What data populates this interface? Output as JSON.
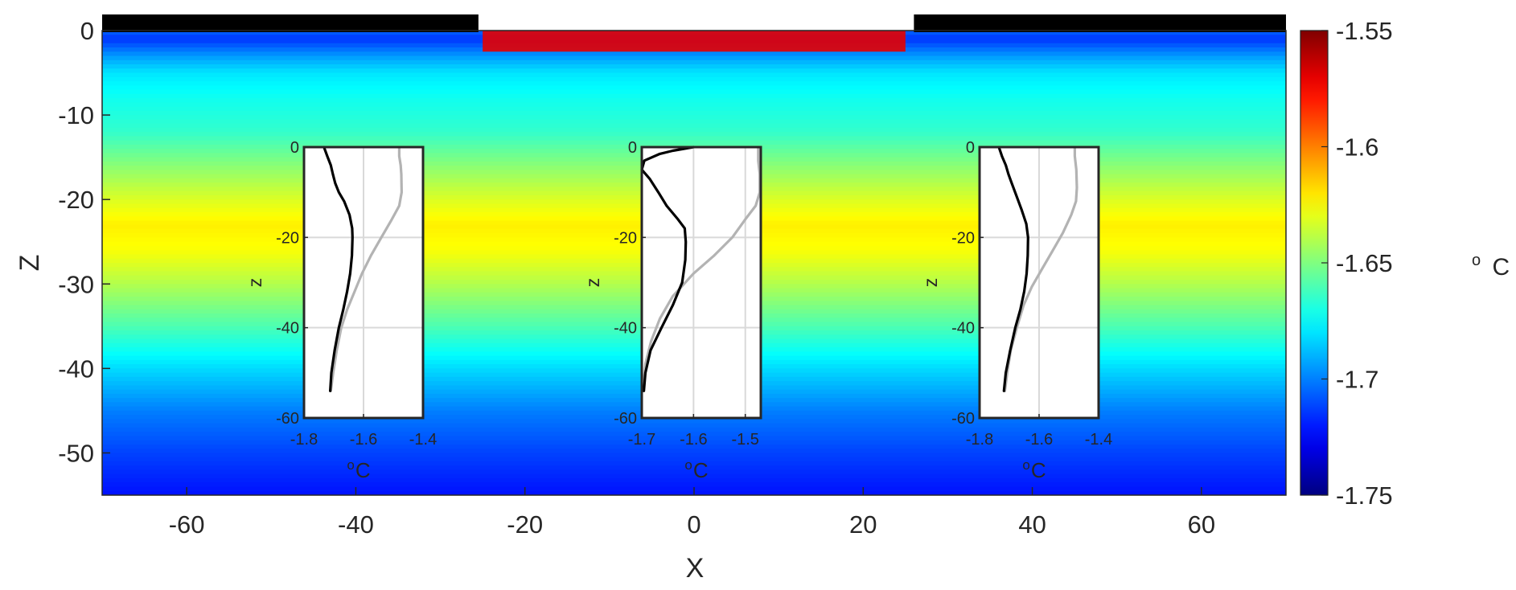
{
  "chart_data": [
    {
      "type": "heatmap",
      "xlabel": "X",
      "ylabel": "Z",
      "xlim": [
        -70,
        70
      ],
      "ylim": [
        -55,
        0
      ],
      "xticks": [
        -60,
        -40,
        -20,
        0,
        20,
        40,
        60
      ],
      "yticks": [
        0,
        -10,
        -20,
        -30,
        -40,
        -50
      ],
      "colormap": "jet",
      "colorbar": {
        "label_base": "o",
        "label_unit": "C",
        "range": [
          -1.75,
          -1.55
        ],
        "ticks": [
          "-1.55",
          "-1.6",
          "-1.65",
          "-1.7",
          "-1.75"
        ]
      },
      "ice_shelves": [
        {
          "x_from": -70,
          "x_to": -25.5,
          "z": 0
        },
        {
          "x_from": 26,
          "x_to": 70,
          "z": 0
        }
      ],
      "temperature_profile": {
        "depth": [
          0,
          -1,
          -3,
          -5,
          -8,
          -12,
          -16,
          -20,
          -23,
          -26,
          -30,
          -35,
          -40,
          -45,
          -50,
          -55
        ],
        "temp": [
          -1.705,
          -1.715,
          -1.695,
          -1.68,
          -1.672,
          -1.665,
          -1.648,
          -1.632,
          -1.622,
          -1.626,
          -1.64,
          -1.66,
          -1.682,
          -1.7,
          -1.712,
          -1.722
        ]
      },
      "surface_warm_layer": {
        "x_from": -25,
        "x_to": 25,
        "temp": -1.57,
        "depth": 2.5
      }
    },
    {
      "type": "line",
      "position": "left inset",
      "xlabel_base": "o",
      "xlabel_unit": "C",
      "ylabel": "z",
      "xlim": [
        -1.8,
        -1.4
      ],
      "ylim": [
        -60,
        0
      ],
      "xticks": [
        -1.8,
        -1.6,
        -1.4
      ],
      "xtick_labels": [
        "-1.8",
        "-1.6",
        "-1.4"
      ],
      "yticks": [
        0,
        -20,
        -40,
        -60
      ],
      "ytick_labels": [
        "0",
        "-20",
        "-40",
        "-60"
      ],
      "grid": true,
      "series": [
        {
          "color": "#000000",
          "x": [
            -1.733,
            -1.722,
            -1.71,
            -1.703,
            -1.695,
            -1.683,
            -1.665,
            -1.647,
            -1.638,
            -1.637,
            -1.639,
            -1.645,
            -1.655,
            -1.668,
            -1.683,
            -1.697,
            -1.708,
            -1.712
          ],
          "y": [
            0,
            -2,
            -4,
            -6,
            -8,
            -10,
            -12,
            -15,
            -18,
            -20,
            -24,
            -28,
            -32,
            -36,
            -40,
            -45,
            -50,
            -54
          ]
        },
        {
          "color": "#b3b3b3",
          "x": [
            -1.48,
            -1.48,
            -1.475,
            -1.473,
            -1.472,
            -1.48,
            -1.505,
            -1.54,
            -1.575,
            -1.605,
            -1.63,
            -1.655,
            -1.675,
            -1.69,
            -1.702,
            -1.71
          ],
          "y": [
            0,
            -2,
            -4,
            -6,
            -10,
            -13,
            -16,
            -20,
            -24,
            -28,
            -32,
            -36,
            -40,
            -45,
            -50,
            -54
          ]
        }
      ]
    },
    {
      "type": "line",
      "position": "center inset",
      "xlabel_base": "o",
      "xlabel_unit": "C",
      "ylabel": "z",
      "xlim": [
        -1.7,
        -1.47
      ],
      "ylim": [
        -60,
        0
      ],
      "xticks": [
        -1.7,
        -1.6,
        -1.5
      ],
      "xtick_labels": [
        "-1.7",
        "-1.6",
        "-1.5"
      ],
      "yticks": [
        0,
        -20,
        -40,
        -60
      ],
      "ytick_labels": [
        "0",
        "-20",
        "-40",
        "-60"
      ],
      "grid": true,
      "series": [
        {
          "color": "#000000",
          "x": [
            -1.6,
            -1.64,
            -1.665,
            -1.695,
            -1.7,
            -1.685,
            -1.668,
            -1.652,
            -1.63,
            -1.617,
            -1.615,
            -1.616,
            -1.622,
            -1.64,
            -1.662,
            -1.683,
            -1.693,
            -1.696
          ],
          "y": [
            0,
            -0.8,
            -1.5,
            -3,
            -5,
            -7,
            -10,
            -13,
            -16,
            -18,
            -21,
            -25,
            -30,
            -35,
            -40,
            -45,
            -50,
            -54
          ]
        },
        {
          "color": "#b3b3b3",
          "x": [
            -1.475,
            -1.475,
            -1.472,
            -1.472,
            -1.48,
            -1.5,
            -1.525,
            -1.56,
            -1.6,
            -1.64,
            -1.665,
            -1.682,
            -1.693,
            -1.698
          ],
          "y": [
            0,
            -3,
            -6,
            -10,
            -13,
            -16,
            -20,
            -24,
            -28,
            -33,
            -38,
            -43,
            -48,
            -54
          ]
        }
      ]
    },
    {
      "type": "line",
      "position": "right inset",
      "xlabel_base": "o",
      "xlabel_unit": "C",
      "ylabel": "z",
      "xlim": [
        -1.8,
        -1.4
      ],
      "ylim": [
        -60,
        0
      ],
      "xticks": [
        -1.8,
        -1.6,
        -1.4
      ],
      "xtick_labels": [
        "-1.8",
        "-1.6",
        "-1.4"
      ],
      "yticks": [
        0,
        -20,
        -40,
        -60
      ],
      "ytick_labels": [
        "0",
        "-20",
        "-40",
        "-60"
      ],
      "grid": true,
      "series": [
        {
          "color": "#000000",
          "x": [
            -1.735,
            -1.725,
            -1.712,
            -1.703,
            -1.692,
            -1.675,
            -1.658,
            -1.643,
            -1.637,
            -1.638,
            -1.642,
            -1.65,
            -1.663,
            -1.68,
            -1.697,
            -1.712,
            -1.718
          ],
          "y": [
            0,
            -2,
            -4,
            -6,
            -8,
            -11,
            -14,
            -17,
            -20,
            -24,
            -28,
            -32,
            -36,
            -40,
            -45,
            -50,
            -54
          ]
        },
        {
          "color": "#b3b3b3",
          "x": [
            -1.48,
            -1.48,
            -1.475,
            -1.473,
            -1.476,
            -1.492,
            -1.52,
            -1.555,
            -1.59,
            -1.625,
            -1.652,
            -1.675,
            -1.695,
            -1.707,
            -1.715
          ],
          "y": [
            0,
            -2,
            -5,
            -9,
            -12,
            -15,
            -19,
            -23,
            -27,
            -31,
            -35,
            -40,
            -45,
            -50,
            -54
          ]
        }
      ]
    }
  ]
}
